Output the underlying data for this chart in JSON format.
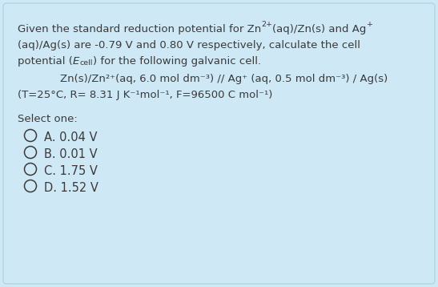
{
  "bg_color": "#cfe8f5",
  "border_color": "#b0d4e8",
  "text_color": "#3a3a3a",
  "font_size": 9.5,
  "font_size_small": 6.8,
  "font_size_options": 10.5,
  "line1a": "Given the standard reduction potential for Zn",
  "line1b": "2+",
  "line1c": "(aq)/Zn(s) and Ag",
  "line1d": "+",
  "line2": "(aq)/Ag(s) are -0.79 V and 0.80 V respectively, calculate the cell",
  "line3a": "potential (",
  "line3b": "E",
  "line3c": "cell",
  "line3d": ") for the following galvanic cell.",
  "cell_line": "Zn(s)/Zn²⁺(aq, 6.0 mol dm⁻³) // Ag⁺ (aq, 0.5 mol dm⁻³) / Ag(s)",
  "params_line": "(T=25°C, R= 8.31 J K⁻¹mol⁻¹, F=96500 C mol⁻¹)",
  "select_one": "Select one:",
  "options": [
    "A. 0.04 V",
    "B. 0.01 V",
    "C. 1.75 V",
    "D. 1.52 V"
  ]
}
